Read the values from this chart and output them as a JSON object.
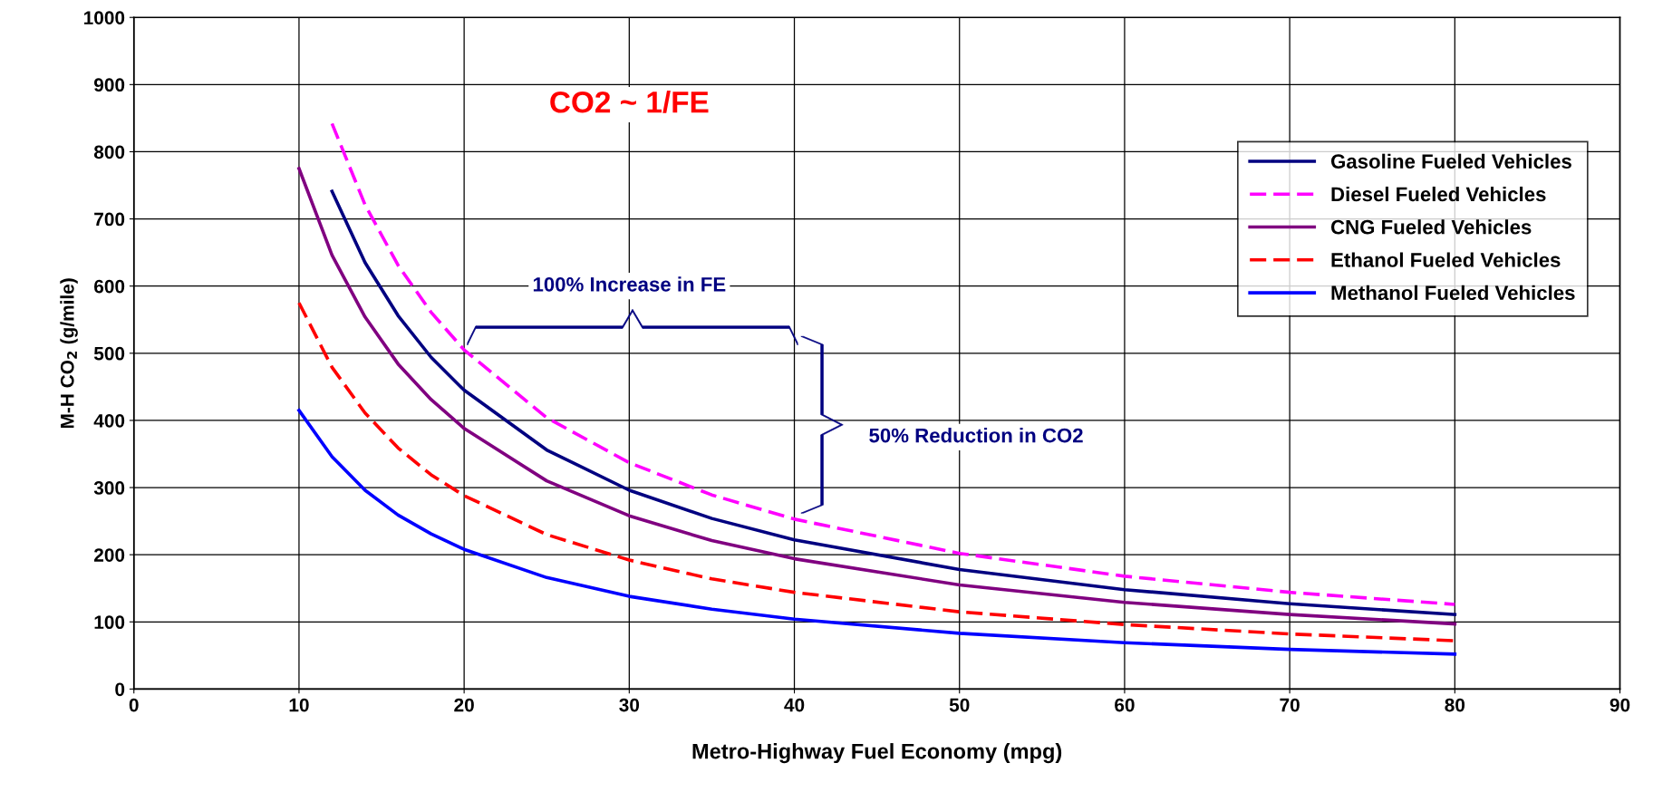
{
  "chart_data": {
    "type": "line",
    "xlabel": "Metro-Highway Fuel Economy (mpg)",
    "ylabel": "M-H CO$_{2}$ (g/mile)",
    "xlim": [
      0,
      90
    ],
    "xticks": [
      0,
      10,
      20,
      30,
      40,
      50,
      60,
      70,
      80,
      90
    ],
    "ylim": [
      0,
      1000
    ],
    "yticks": [
      0,
      100,
      200,
      300,
      400,
      500,
      600,
      700,
      800,
      900,
      1000
    ],
    "grid": true,
    "legend": "top right",
    "marker": "none",
    "annotations": [
      "CO2 ~ 1/FE",
      "100% Increase in FE",
      "50% Reduction in CO2"
    ],
    "series": [
      {
        "name": "Gasoline Fueled Vehicles",
        "color": "#000080",
        "line_style": "solid",
        "x": [
          12,
          14,
          16,
          18,
          20,
          25,
          30,
          35,
          40,
          50,
          60,
          70,
          80
        ],
        "values": [
          741,
          635,
          556,
          494,
          445,
          356,
          296,
          254,
          222,
          178,
          148,
          127,
          111
        ]
      },
      {
        "name": "Diesel Fueled Vehicles",
        "color": "#ff00ff",
        "line_style": "dashed",
        "x": [
          12,
          14,
          16,
          18,
          20,
          25,
          30,
          35,
          40,
          50,
          60,
          70,
          80
        ],
        "values": [
          842,
          721,
          631,
          561,
          505,
          404,
          337,
          289,
          253,
          202,
          168,
          144,
          126
        ]
      },
      {
        "name": "CNG Fueled Vehicles",
        "color": "#800080",
        "line_style": "solid",
        "x": [
          10,
          12,
          14,
          16,
          18,
          20,
          25,
          30,
          35,
          40,
          50,
          60,
          70,
          80
        ],
        "values": [
          775,
          646,
          554,
          484,
          431,
          388,
          310,
          258,
          221,
          194,
          155,
          129,
          111,
          97
        ]
      },
      {
        "name": "Ethanol Fueled Vehicles",
        "color": "#ff0000",
        "line_style": "dashed",
        "x": [
          10,
          12,
          14,
          16,
          18,
          20,
          25,
          30,
          35,
          40,
          50,
          60,
          70,
          80
        ],
        "values": [
          575,
          479,
          411,
          359,
          319,
          288,
          230,
          192,
          164,
          144,
          115,
          96,
          82,
          72
        ]
      },
      {
        "name": "Methanol Fueled Vehicles",
        "color": "#0000ff",
        "line_style": "solid",
        "x": [
          10,
          12,
          14,
          16,
          18,
          20,
          25,
          30,
          35,
          40,
          50,
          60,
          70,
          80
        ],
        "values": [
          415,
          346,
          296,
          259,
          231,
          208,
          166,
          138,
          119,
          104,
          83,
          69,
          59,
          52
        ]
      }
    ]
  }
}
